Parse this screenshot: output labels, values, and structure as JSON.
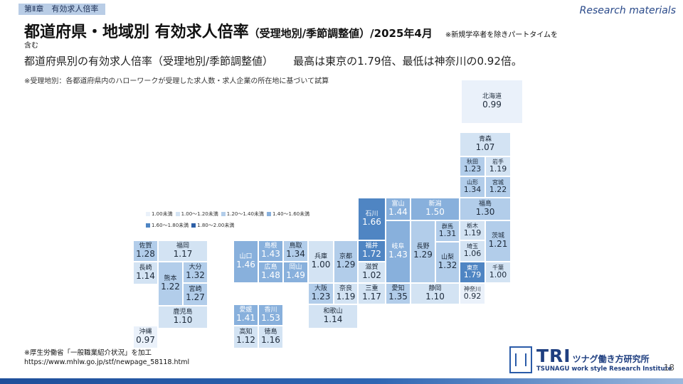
{
  "header": {
    "chapter_tag": "第Ⅱ章　有効求人倍率",
    "research_label": "Research materials",
    "title_main": "都道府県・地域別 有効求人倍率",
    "title_sub": "（受理地別/季節調整値）/2025年4月",
    "title_note": "※新規学卒者を除きパートタイムを",
    "title_note_wrap": "含む"
  },
  "lead": {
    "subtitle": "都道府県別の有効求人倍率（受理地別/季節調整値）",
    "highlight": "最高は東京の1.79倍、最低は神奈川の0.92倍。"
  },
  "footnote": "※受理地別：各都道府県内のハローワークが受理した求人数・求人企業の所在地に基づいて試算",
  "legend": {
    "colors": [
      "#eaf1fa",
      "#d3e3f3",
      "#b2cdea",
      "#88b0dc",
      "#4f85c3",
      "#2e5fa6"
    ],
    "items": [
      "1.00未満",
      "1.00～1.20未満",
      "1.20～1.40未満",
      "1.40～1.60未満",
      "1.60～1.80未満",
      "1.80～2.00未満"
    ]
  },
  "prefectures": [
    {
      "id": "hokkaido",
      "name": "北海道",
      "value": "0.99"
    },
    {
      "id": "aomori",
      "name": "青森",
      "value": "1.07"
    },
    {
      "id": "akita",
      "name": "秋田",
      "value": "1.23"
    },
    {
      "id": "iwate",
      "name": "岩手",
      "value": "1.19"
    },
    {
      "id": "yamagata",
      "name": "山形",
      "value": "1.34"
    },
    {
      "id": "miyagi",
      "name": "宮城",
      "value": "1.22"
    },
    {
      "id": "fukushima",
      "name": "福島",
      "value": "1.30"
    },
    {
      "id": "ishikawa",
      "name": "石川",
      "value": "1.66"
    },
    {
      "id": "toyama",
      "name": "富山",
      "value": "1.44"
    },
    {
      "id": "niigata",
      "name": "新潟",
      "value": "1.50"
    },
    {
      "id": "gunma",
      "name": "群馬",
      "value": "1.31"
    },
    {
      "id": "tochigi",
      "name": "栃木",
      "value": "1.19"
    },
    {
      "id": "ibaraki",
      "name": "茨城",
      "value": "1.21"
    },
    {
      "id": "fukui",
      "name": "福井",
      "value": "1.72"
    },
    {
      "id": "gifu",
      "name": "岐阜",
      "value": "1.43"
    },
    {
      "id": "nagano",
      "name": "長野",
      "value": "1.29"
    },
    {
      "id": "yamanashi",
      "name": "山梨",
      "value": "1.32"
    },
    {
      "id": "saitama",
      "name": "埼玉",
      "value": "1.06"
    },
    {
      "id": "tokyo",
      "name": "東京",
      "value": "1.79"
    },
    {
      "id": "chiba",
      "name": "千葉",
      "value": "1.00"
    },
    {
      "id": "kanagawa",
      "name": "神奈川",
      "value": "0.92"
    },
    {
      "id": "shiga",
      "name": "滋賀",
      "value": "1.02"
    },
    {
      "id": "mie",
      "name": "三重",
      "value": "1.17"
    },
    {
      "id": "aichi",
      "name": "愛知",
      "value": "1.35"
    },
    {
      "id": "shizuoka",
      "name": "静岡",
      "value": "1.10"
    },
    {
      "id": "hyogo",
      "name": "兵庫",
      "value": "1.00"
    },
    {
      "id": "kyoto",
      "name": "京都",
      "value": "1.29"
    },
    {
      "id": "osaka",
      "name": "大阪",
      "value": "1.23"
    },
    {
      "id": "nara",
      "name": "奈良",
      "value": "1.19"
    },
    {
      "id": "wakayama",
      "name": "和歌山",
      "value": "1.14"
    },
    {
      "id": "yamaguchi",
      "name": "山口",
      "value": "1.46"
    },
    {
      "id": "shimane",
      "name": "島根",
      "value": "1.43"
    },
    {
      "id": "tottori",
      "name": "鳥取",
      "value": "1.34"
    },
    {
      "id": "hiroshima",
      "name": "広島",
      "value": "1.48"
    },
    {
      "id": "okayama",
      "name": "岡山",
      "value": "1.49"
    },
    {
      "id": "ehime",
      "name": "愛媛",
      "value": "1.41"
    },
    {
      "id": "kagawa",
      "name": "香川",
      "value": "1.53"
    },
    {
      "id": "kochi",
      "name": "高知",
      "value": "1.12"
    },
    {
      "id": "tokushima",
      "name": "徳島",
      "value": "1.16"
    },
    {
      "id": "saga",
      "name": "佐賀",
      "value": "1.28"
    },
    {
      "id": "fukuoka",
      "name": "福岡",
      "value": "1.17"
    },
    {
      "id": "nagasaki",
      "name": "長崎",
      "value": "1.14"
    },
    {
      "id": "kumamoto",
      "name": "熊本",
      "value": "1.22"
    },
    {
      "id": "oita",
      "name": "大分",
      "value": "1.32"
    },
    {
      "id": "miyazaki",
      "name": "宮崎",
      "value": "1.27"
    },
    {
      "id": "kagoshima",
      "name": "鹿児島",
      "value": "1.10"
    },
    {
      "id": "okinawa",
      "name": "沖縄",
      "value": "0.97"
    }
  ],
  "source": {
    "line1": "※厚生労働省「一般職業紹介状況」を加工",
    "line2": "https://www.mhlw.go.jp/stf/newpage_58118.html"
  },
  "logo": {
    "tri": "TRI",
    "jp": "ツナグ働き方研究所",
    "en": "TSUNAGU work style Research Institute"
  },
  "page_number": "18"
}
